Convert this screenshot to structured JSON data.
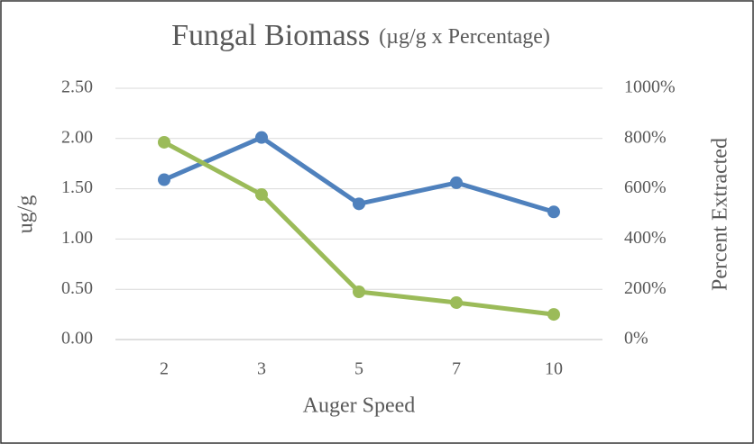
{
  "chart_data": {
    "type": "line",
    "title": "Fungal Biomass",
    "title_units": "(µg/g x Percentage)",
    "x_label": "Auger Speed",
    "y_label": "ug/g",
    "y2_label": "Percent Extracted",
    "categories": [
      "2",
      "3",
      "5",
      "7",
      "10"
    ],
    "series": [
      {
        "color": "#4f81bd",
        "values": [
          1.59,
          2.01,
          1.35,
          1.56,
          1.27
        ]
      },
      {
        "color": "#9bbb59",
        "axis": "y2",
        "values": [
          785,
          577,
          190,
          147,
          100
        ]
      }
    ],
    "ylim": [
      0,
      2.5
    ],
    "yticks": [
      {
        "value": 0,
        "label": "0.00"
      },
      {
        "value": 0.5,
        "label": "0.50"
      },
      {
        "value": 1,
        "label": "1.00"
      },
      {
        "value": 1.5,
        "label": "1.50"
      },
      {
        "value": 2,
        "label": "2.00"
      },
      {
        "value": 2.5,
        "label": "2.50"
      }
    ],
    "y2lim": [
      0,
      1000
    ],
    "y2ticks": [
      {
        "value": 0,
        "label": "0%"
      },
      {
        "value": 200,
        "label": "200%"
      },
      {
        "value": 400,
        "label": "400%"
      },
      {
        "value": 600,
        "label": "600%"
      },
      {
        "value": 800,
        "label": "800%"
      },
      {
        "value": 1000,
        "label": "1000%"
      }
    ],
    "grid": true
  }
}
